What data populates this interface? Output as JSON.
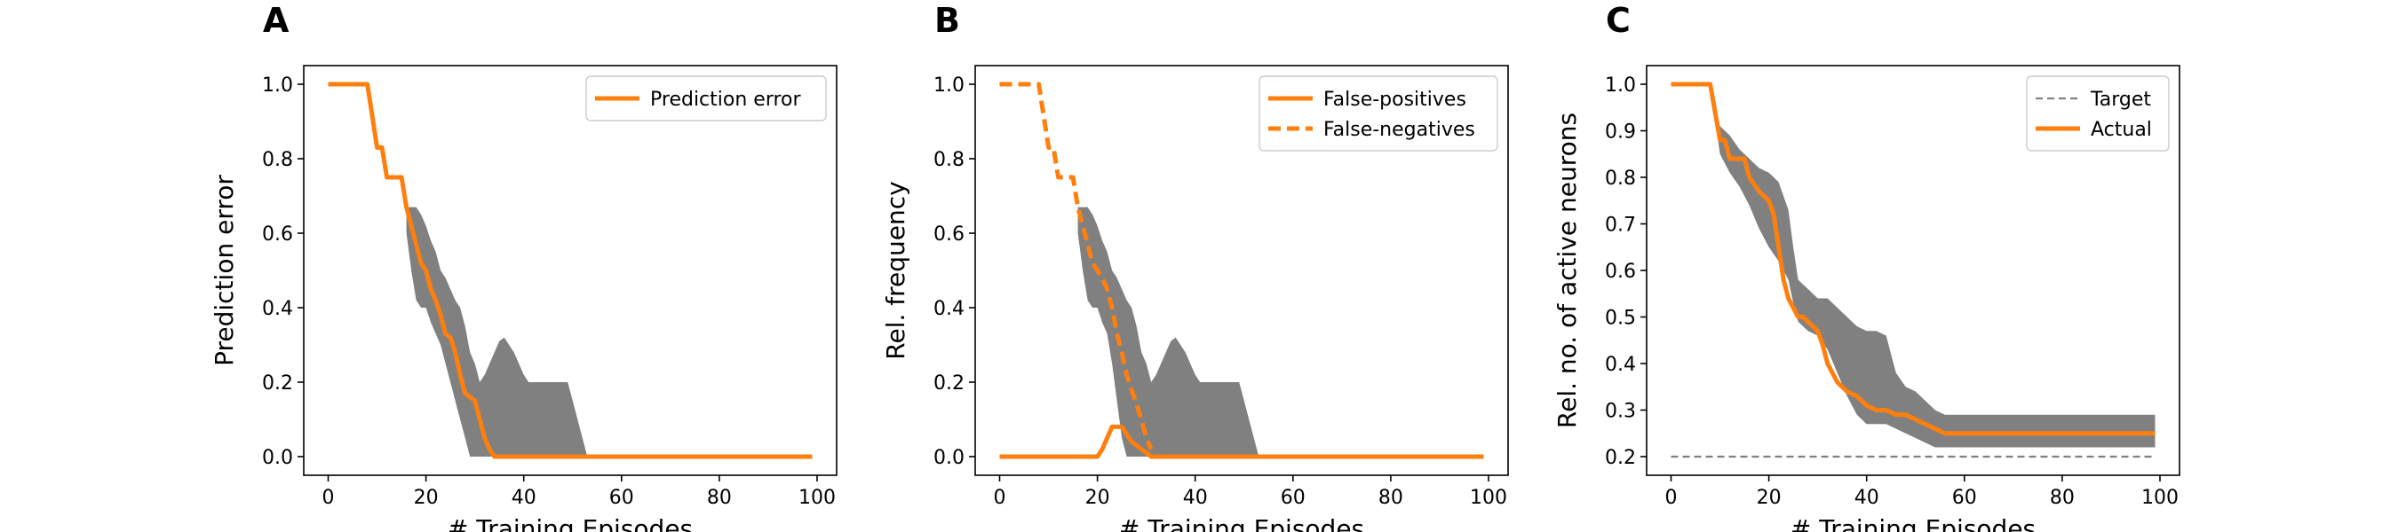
{
  "chart_data": [
    {
      "type": "line",
      "panel": "A",
      "xlabel": "# Training Episodes",
      "ylabel": "Prediction error",
      "xlim": [
        -5,
        104
      ],
      "ylim": [
        -0.05,
        1.05
      ],
      "xticks": [
        0,
        20,
        40,
        60,
        80,
        100
      ],
      "yticks": [
        0.0,
        0.2,
        0.4,
        0.6,
        0.8,
        1.0
      ],
      "ytick_labels": [
        "0.0",
        "0.2",
        "0.4",
        "0.6",
        "0.8",
        "1.0"
      ],
      "grid": false,
      "legend_position": "upper right",
      "series": [
        {
          "name": "Prediction error",
          "style": "solid",
          "color": "#ff7f0e",
          "x": [
            0,
            8,
            10,
            11,
            12,
            13,
            15,
            16,
            17,
            18,
            19,
            20,
            21,
            22,
            23,
            24,
            25,
            26,
            27,
            28,
            29,
            30,
            31,
            32,
            33,
            34,
            35,
            99
          ],
          "y": [
            1.0,
            1.0,
            0.83,
            0.83,
            0.75,
            0.75,
            0.75,
            0.67,
            0.62,
            0.57,
            0.52,
            0.5,
            0.45,
            0.42,
            0.38,
            0.33,
            0.32,
            0.28,
            0.22,
            0.17,
            0.16,
            0.15,
            0.1,
            0.05,
            0.02,
            0.0,
            0.0,
            0.0
          ]
        }
      ],
      "bands": [
        {
          "color": "#808080",
          "x": [
            16,
            17,
            18,
            19,
            20,
            21,
            22,
            23,
            24,
            25,
            26,
            27,
            28,
            29,
            30,
            31,
            32,
            33,
            34,
            35,
            36,
            37,
            38,
            39,
            40,
            41,
            42,
            43,
            44,
            45,
            46,
            47,
            48,
            49,
            50,
            51,
            52,
            53
          ],
          "upper": [
            0.67,
            0.67,
            0.67,
            0.65,
            0.62,
            0.58,
            0.55,
            0.5,
            0.48,
            0.45,
            0.42,
            0.4,
            0.35,
            0.28,
            0.25,
            0.2,
            0.22,
            0.25,
            0.28,
            0.31,
            0.32,
            0.3,
            0.28,
            0.25,
            0.22,
            0.2,
            0.2,
            0.2,
            0.2,
            0.2,
            0.2,
            0.2,
            0.2,
            0.2,
            0.15,
            0.1,
            0.05,
            0.0
          ],
          "lower": [
            0.6,
            0.5,
            0.42,
            0.4,
            0.4,
            0.36,
            0.33,
            0.3,
            0.25,
            0.2,
            0.15,
            0.1,
            0.05,
            0.0,
            0.0,
            0.0,
            0.0,
            0.0,
            0.0,
            0.0,
            0.0,
            0.0,
            0.0,
            0.0,
            0.0,
            0.0,
            0.0,
            0.0,
            0.0,
            0.0,
            0.0,
            0.0,
            0.0,
            0.0,
            0.0,
            0.0,
            0.0,
            0.0
          ]
        }
      ]
    },
    {
      "type": "line",
      "panel": "B",
      "xlabel": "# Training Episodes",
      "ylabel": "Rel. frequency",
      "xlim": [
        -5,
        104
      ],
      "ylim": [
        -0.05,
        1.05
      ],
      "xticks": [
        0,
        20,
        40,
        60,
        80,
        100
      ],
      "yticks": [
        0.0,
        0.2,
        0.4,
        0.6,
        0.8,
        1.0
      ],
      "ytick_labels": [
        "0.0",
        "0.2",
        "0.4",
        "0.6",
        "0.8",
        "1.0"
      ],
      "grid": false,
      "legend_position": "upper right",
      "series": [
        {
          "name": "False-positives",
          "style": "solid",
          "color": "#ff7f0e",
          "x": [
            0,
            20,
            21,
            22,
            23,
            24,
            25,
            26,
            27,
            28,
            29,
            30,
            31,
            99
          ],
          "y": [
            0.0,
            0.0,
            0.02,
            0.05,
            0.08,
            0.08,
            0.08,
            0.06,
            0.04,
            0.03,
            0.02,
            0.01,
            0.0,
            0.0
          ]
        },
        {
          "name": "False-negatives",
          "style": "dashed",
          "color": "#ff7f0e",
          "x": [
            0,
            8,
            10,
            11,
            12,
            13,
            15,
            16,
            17,
            18,
            19,
            20,
            21,
            22,
            23,
            24,
            25,
            26,
            27,
            28,
            29,
            30,
            31
          ],
          "y": [
            1.0,
            1.0,
            0.83,
            0.83,
            0.75,
            0.75,
            0.75,
            0.67,
            0.62,
            0.57,
            0.52,
            0.5,
            0.48,
            0.45,
            0.4,
            0.33,
            0.28,
            0.22,
            0.18,
            0.14,
            0.1,
            0.05,
            0.02
          ]
        }
      ],
      "bands": [
        {
          "color": "#808080",
          "x": [
            16,
            17,
            18,
            19,
            20,
            21,
            22,
            23,
            24,
            25,
            26,
            27,
            28,
            29,
            30,
            31,
            32,
            33,
            34,
            35,
            36,
            37,
            38,
            39,
            40,
            41,
            42,
            43,
            44,
            45,
            46,
            47,
            48,
            49,
            50,
            51,
            52,
            53
          ],
          "upper": [
            0.67,
            0.67,
            0.67,
            0.65,
            0.62,
            0.58,
            0.55,
            0.5,
            0.48,
            0.45,
            0.42,
            0.4,
            0.35,
            0.28,
            0.25,
            0.2,
            0.22,
            0.25,
            0.28,
            0.31,
            0.32,
            0.3,
            0.28,
            0.25,
            0.22,
            0.2,
            0.2,
            0.2,
            0.2,
            0.2,
            0.2,
            0.2,
            0.2,
            0.2,
            0.15,
            0.1,
            0.05,
            0.0
          ],
          "lower": [
            0.6,
            0.5,
            0.42,
            0.4,
            0.4,
            0.36,
            0.33,
            0.25,
            0.15,
            0.05,
            0.0,
            0.0,
            0.0,
            0.0,
            0.0,
            0.0,
            0.0,
            0.0,
            0.0,
            0.0,
            0.0,
            0.0,
            0.0,
            0.0,
            0.0,
            0.0,
            0.0,
            0.0,
            0.0,
            0.0,
            0.0,
            0.0,
            0.0,
            0.0,
            0.0,
            0.0,
            0.0,
            0.0
          ]
        }
      ]
    },
    {
      "type": "line",
      "panel": "C",
      "xlabel": "# Training Episodes",
      "ylabel": "Rel. no. of active neurons",
      "xlim": [
        -5,
        104
      ],
      "ylim": [
        0.16,
        1.04
      ],
      "xticks": [
        0,
        20,
        40,
        60,
        80,
        100
      ],
      "yticks": [
        0.2,
        0.3,
        0.4,
        0.5,
        0.6,
        0.7,
        0.8,
        0.9,
        1.0
      ],
      "ytick_labels": [
        "0.2",
        "0.3",
        "0.4",
        "0.5",
        "0.6",
        "0.7",
        "0.8",
        "0.9",
        "1.0"
      ],
      "grid": false,
      "legend_position": "upper right",
      "series": [
        {
          "name": "Target",
          "style": "dashed-thin",
          "color": "#808080",
          "x": [
            0,
            99
          ],
          "y": [
            0.2,
            0.2
          ]
        },
        {
          "name": "Actual",
          "style": "solid",
          "color": "#ff7f0e",
          "x": [
            0,
            8,
            10,
            11,
            12,
            13,
            15,
            16,
            18,
            20,
            21,
            22,
            23,
            24,
            25,
            26,
            27,
            28,
            29,
            30,
            31,
            32,
            33,
            34,
            35,
            36,
            38,
            40,
            42,
            44,
            46,
            48,
            50,
            52,
            54,
            56,
            58,
            60,
            99
          ],
          "y": [
            1.0,
            1.0,
            0.88,
            0.88,
            0.84,
            0.84,
            0.84,
            0.8,
            0.77,
            0.75,
            0.72,
            0.65,
            0.58,
            0.54,
            0.52,
            0.5,
            0.5,
            0.49,
            0.48,
            0.47,
            0.44,
            0.4,
            0.38,
            0.36,
            0.35,
            0.34,
            0.33,
            0.31,
            0.3,
            0.3,
            0.29,
            0.29,
            0.28,
            0.27,
            0.26,
            0.25,
            0.25,
            0.25,
            0.25
          ]
        }
      ],
      "bands": [
        {
          "color": "#808080",
          "x": [
            8,
            10,
            12,
            14,
            16,
            18,
            20,
            22,
            24,
            25,
            26,
            28,
            30,
            32,
            34,
            36,
            38,
            40,
            42,
            44,
            46,
            48,
            50,
            52,
            54,
            56,
            58,
            60,
            99
          ],
          "upper": [
            1.0,
            0.91,
            0.89,
            0.86,
            0.84,
            0.82,
            0.81,
            0.79,
            0.73,
            0.65,
            0.58,
            0.56,
            0.54,
            0.54,
            0.52,
            0.5,
            0.48,
            0.47,
            0.47,
            0.46,
            0.38,
            0.35,
            0.34,
            0.32,
            0.3,
            0.29,
            0.29,
            0.29,
            0.29
          ],
          "lower": [
            1.0,
            0.85,
            0.81,
            0.78,
            0.74,
            0.69,
            0.65,
            0.62,
            0.58,
            0.53,
            0.49,
            0.47,
            0.46,
            0.43,
            0.38,
            0.33,
            0.29,
            0.27,
            0.27,
            0.27,
            0.26,
            0.25,
            0.24,
            0.23,
            0.22,
            0.22,
            0.22,
            0.22,
            0.22
          ]
        }
      ]
    }
  ]
}
